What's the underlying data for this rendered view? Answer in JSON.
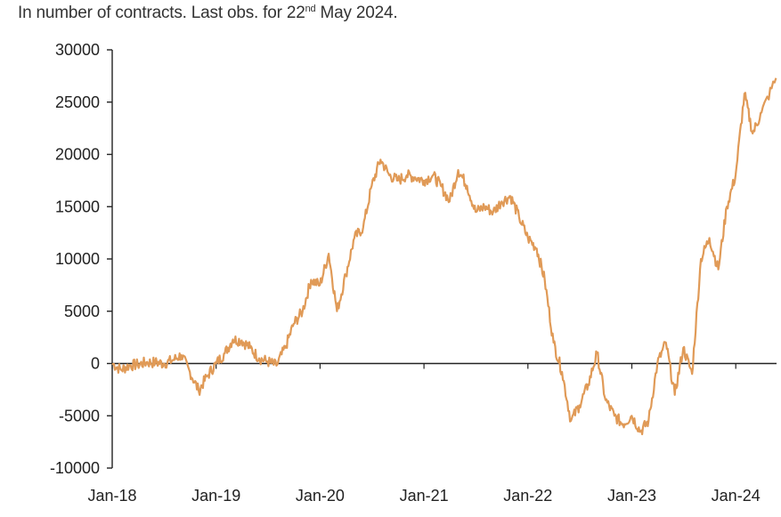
{
  "subtitle": {
    "prefix": "In number of contracts. Last obs. for 22",
    "sup": "nd",
    "suffix": " May 2024."
  },
  "colors": {
    "series": "#E09A57",
    "axis": "#222222",
    "text": "#222222"
  },
  "chart_data": {
    "type": "line",
    "title": "",
    "xlabel": "",
    "ylabel": "",
    "ylim": [
      -10000,
      30000
    ],
    "y_ticks": [
      30000,
      25000,
      20000,
      15000,
      10000,
      5000,
      0,
      -5000,
      -10000
    ],
    "x_range": [
      "2018-01",
      "2024-05-22"
    ],
    "x_ticks": [
      "Jan-18",
      "Jan-19",
      "Jan-20",
      "Jan-21",
      "Jan-22",
      "Jan-23",
      "Jan-24"
    ],
    "grid": false,
    "series": [
      {
        "x": [
          "2018-01",
          "2018-02",
          "2018-03",
          "2018-04",
          "2018-05",
          "2018-06",
          "2018-07",
          "2018-08",
          "2018-09",
          "2018-10",
          "2018-11",
          "2018-12",
          "2019-01",
          "2019-02",
          "2019-03",
          "2019-04",
          "2019-05",
          "2019-06",
          "2019-07",
          "2019-08",
          "2019-09",
          "2019-10",
          "2019-11",
          "2019-12",
          "2020-01",
          "2020-02",
          "2020-03",
          "2020-04",
          "2020-05",
          "2020-06",
          "2020-07",
          "2020-08",
          "2020-09",
          "2020-10",
          "2020-11",
          "2020-12",
          "2021-01",
          "2021-02",
          "2021-03",
          "2021-04",
          "2021-05",
          "2021-06",
          "2021-07",
          "2021-08",
          "2021-09",
          "2021-10",
          "2021-11",
          "2021-12",
          "2022-01",
          "2022-02",
          "2022-03",
          "2022-04",
          "2022-05",
          "2022-06",
          "2022-07",
          "2022-08",
          "2022-09",
          "2022-10",
          "2022-11",
          "2022-12",
          "2023-01",
          "2023-02",
          "2023-03",
          "2023-04",
          "2023-05",
          "2023-06",
          "2023-07",
          "2023-08",
          "2023-09",
          "2023-10",
          "2023-11",
          "2023-12",
          "2024-01",
          "2024-02",
          "2024-03",
          "2024-04",
          "2024-05-22"
        ],
        "values": [
          0,
          -600,
          -200,
          -100,
          100,
          100,
          0,
          300,
          800,
          -800,
          -2600,
          -1200,
          0,
          1000,
          2300,
          2200,
          1500,
          500,
          200,
          -200,
          1500,
          3800,
          5000,
          8000,
          7500,
          10500,
          5000,
          8500,
          12000,
          13000,
          17000,
          19500,
          18000,
          17500,
          18000,
          17800,
          17500,
          18000,
          17000,
          15500,
          18500,
          17000,
          14500,
          15000,
          14500,
          15500,
          16000,
          14000,
          12000,
          11000,
          8000,
          2000,
          -800,
          -5500,
          -4000,
          -2000,
          1000,
          -3500,
          -5000,
          -5800,
          -5000,
          -6500,
          -5500,
          0,
          2000,
          -3000,
          1500,
          -1000,
          10000,
          12000,
          9000,
          15000,
          18000,
          25800,
          22000,
          24000,
          27300
        ]
      }
    ]
  }
}
